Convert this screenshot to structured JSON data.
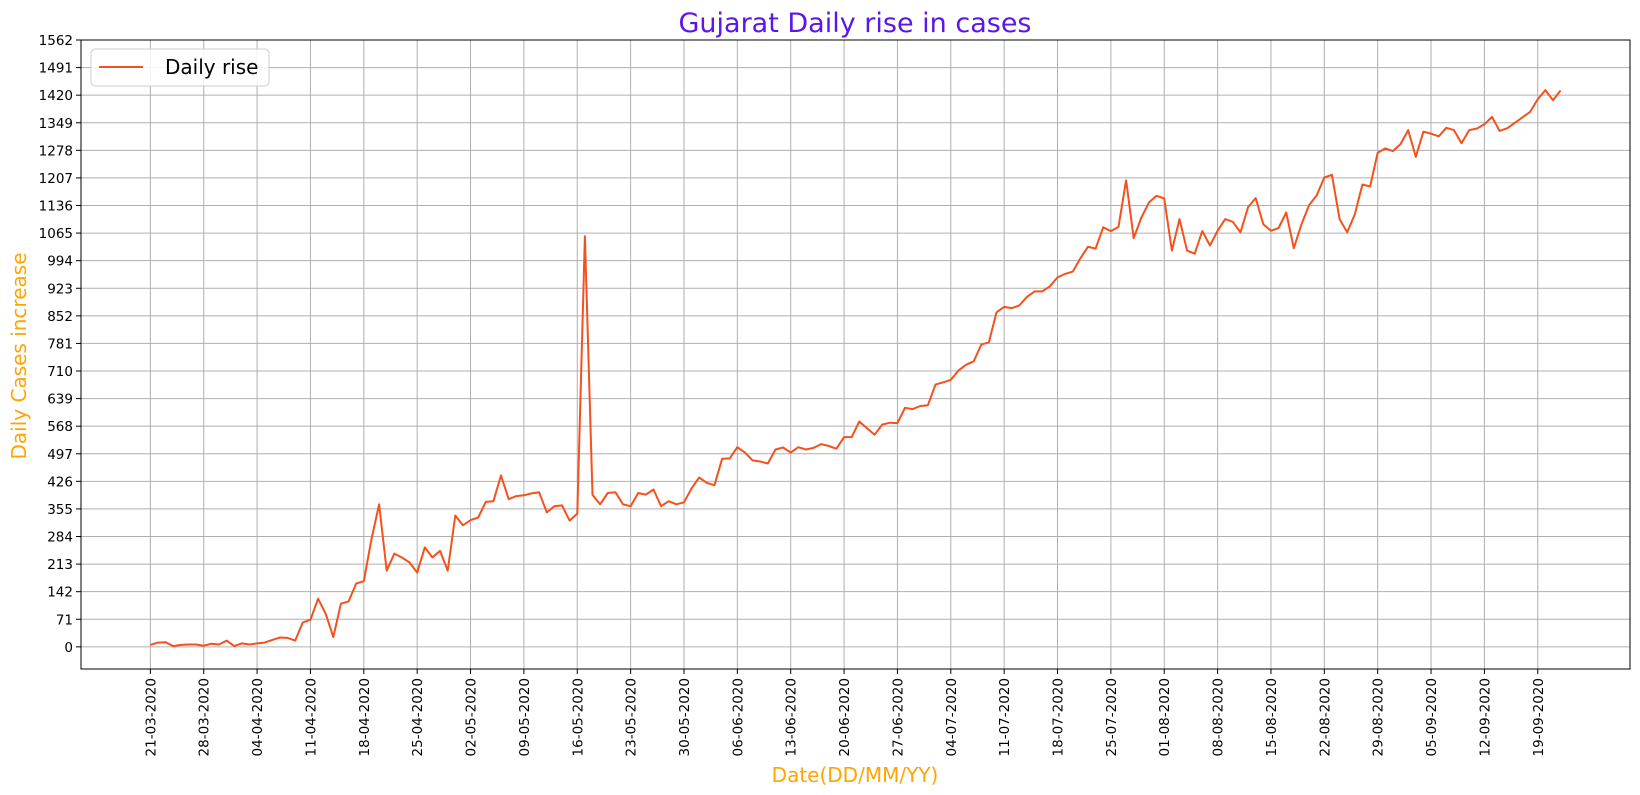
{
  "chart_data": {
    "type": "line",
    "title": "Gujarat Daily rise in cases",
    "xlabel": "Date(DD/MM/YY)",
    "ylabel": "Daily Cases increase",
    "ylim": [
      -57,
      1562
    ],
    "yticks": [
      0,
      71,
      142,
      213,
      284,
      355,
      426,
      497,
      568,
      639,
      710,
      781,
      852,
      923,
      994,
      1065,
      1136,
      1207,
      1278,
      1349,
      1420,
      1491,
      1562
    ],
    "start_date": "21-03-2020",
    "xtick_labels": [
      "21-03-2020",
      "28-03-2020",
      "04-04-2020",
      "11-04-2020",
      "18-04-2020",
      "25-04-2020",
      "02-05-2020",
      "09-05-2020",
      "16-05-2020",
      "23-05-2020",
      "30-05-2020",
      "06-06-2020",
      "13-06-2020",
      "20-06-2020",
      "27-06-2020",
      "04-07-2020",
      "11-07-2020",
      "18-07-2020",
      "25-07-2020",
      "01-08-2020",
      "08-08-2020",
      "15-08-2020",
      "22-08-2020",
      "29-08-2020",
      "05-09-2020",
      "12-09-2020",
      "19-09-2020"
    ],
    "grid": true,
    "legend_position": "top-left",
    "series": [
      {
        "name": "Daily rise",
        "color": "#f4511e",
        "values": [
          5,
          11,
          12,
          2,
          5,
          6,
          6,
          3,
          8,
          6,
          16,
          2,
          9,
          6,
          9,
          11,
          18,
          24,
          23,
          16,
          63,
          70,
          124,
          85,
          25,
          111,
          117,
          163,
          169,
          276,
          367,
          196,
          240,
          230,
          217,
          191,
          256,
          230,
          247,
          196,
          338,
          313,
          326,
          333,
          373,
          375,
          441,
          380,
          388,
          390,
          395,
          398,
          346,
          362,
          364,
          325,
          343,
          1057,
          391,
          367,
          396,
          398,
          367,
          362,
          396,
          392,
          405,
          362,
          375,
          367,
          372,
          408,
          436,
          422,
          416,
          484,
          485,
          514,
          500,
          480,
          477,
          472,
          508,
          513,
          500,
          514,
          508,
          512,
          522,
          517,
          510,
          540,
          540,
          580,
          563,
          546,
          572,
          577,
          576,
          615,
          612,
          620,
          622,
          675,
          681,
          687,
          711,
          726,
          735,
          778,
          784,
          861,
          875,
          872,
          879,
          901,
          915,
          915,
          928,
          951,
          960,
          966,
          1000,
          1030,
          1025,
          1080,
          1070,
          1081,
          1201,
          1052,
          1105,
          1144,
          1161,
          1154,
          1020,
          1101,
          1020,
          1012,
          1070,
          1033,
          1071,
          1101,
          1094,
          1067,
          1132,
          1155,
          1088,
          1071,
          1078,
          1118,
          1026,
          1087,
          1137,
          1162,
          1208,
          1215,
          1101,
          1067,
          1113,
          1190,
          1185,
          1272,
          1283,
          1276,
          1294,
          1330,
          1261,
          1326,
          1321,
          1314,
          1336,
          1330,
          1296,
          1330,
          1334,
          1345,
          1364,
          1328,
          1335,
          1349,
          1363,
          1377,
          1410,
          1433,
          1407,
          1432
        ]
      }
    ]
  }
}
